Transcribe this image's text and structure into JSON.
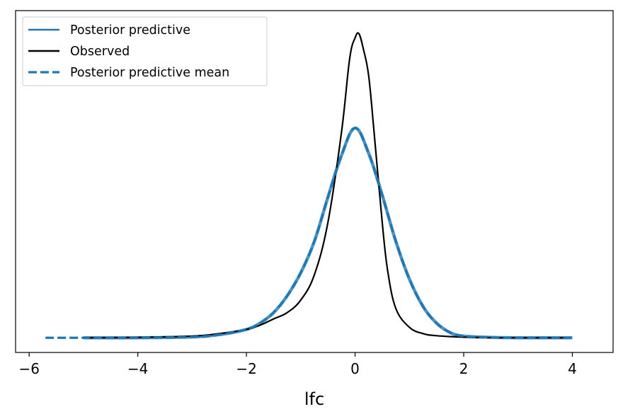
{
  "chart_data": {
    "type": "line",
    "title": "",
    "xlabel": "lfc",
    "ylabel": "",
    "xlim": [
      -6.25,
      4.75
    ],
    "ylim": [
      -0.07,
      1.56
    ],
    "xticks": [
      -6,
      -4,
      -2,
      0,
      2,
      4
    ],
    "xtick_labels": [
      "−6",
      "−4",
      "−2",
      "0",
      "2",
      "4"
    ],
    "yticks_shown": false,
    "grid": false,
    "legend": {
      "position": "top-left",
      "entries": [
        {
          "label": "Posterior predictive",
          "style": "solid",
          "color": "#1f77b4"
        },
        {
          "label": "Observed",
          "style": "solid",
          "color": "#000000"
        },
        {
          "label": "Posterior predictive mean",
          "style": "dashed",
          "color": "#1f77b4"
        }
      ]
    },
    "series": [
      {
        "name": "Posterior predictive",
        "color": "#1f77b4",
        "style": "solid",
        "x": [
          -5.0,
          -4.0,
          -3.0,
          -2.5,
          -2.0,
          -1.75,
          -1.5,
          -1.25,
          -1.0,
          -0.75,
          -0.5,
          -0.25,
          0.0,
          0.25,
          0.5,
          0.75,
          1.0,
          1.25,
          1.5,
          1.75,
          2.0,
          2.5,
          3.0,
          4.0
        ],
        "y": [
          0.0,
          0.0,
          0.004,
          0.015,
          0.04,
          0.07,
          0.12,
          0.2,
          0.31,
          0.46,
          0.67,
          0.87,
          1.0,
          0.88,
          0.68,
          0.46,
          0.28,
          0.15,
          0.07,
          0.025,
          0.008,
          0.002,
          0.0,
          0.0
        ]
      },
      {
        "name": "Observed",
        "color": "#000000",
        "style": "solid",
        "x": [
          -4.9,
          -4.0,
          -3.0,
          -2.5,
          -2.0,
          -1.75,
          -1.5,
          -1.25,
          -1.0,
          -0.75,
          -0.5,
          -0.25,
          -0.1,
          0.0,
          0.07,
          0.15,
          0.25,
          0.35,
          0.5,
          0.6,
          0.75,
          1.0,
          1.25,
          1.5,
          2.0,
          2.5,
          3.0,
          3.95
        ],
        "y": [
          0.0,
          0.002,
          0.008,
          0.02,
          0.04,
          0.06,
          0.09,
          0.12,
          0.18,
          0.3,
          0.55,
          0.98,
          1.33,
          1.43,
          1.45,
          1.38,
          1.25,
          0.98,
          0.55,
          0.32,
          0.14,
          0.05,
          0.02,
          0.01,
          0.003,
          0.001,
          0.0,
          0.0
        ]
      },
      {
        "name": "Posterior predictive mean",
        "color": "#1f77b4",
        "style": "dashed",
        "x": [
          -5.7,
          -5.0,
          -4.0,
          -3.0,
          -2.5,
          -2.0,
          -1.75,
          -1.5,
          -1.25,
          -1.0,
          -0.75,
          -0.5,
          -0.25,
          0.0,
          0.25,
          0.5,
          0.75,
          1.0,
          1.25,
          1.5,
          1.75,
          2.0,
          2.5,
          3.0,
          4.0
        ],
        "y": [
          0.0,
          0.0,
          0.0,
          0.004,
          0.015,
          0.04,
          0.07,
          0.12,
          0.2,
          0.31,
          0.46,
          0.67,
          0.87,
          1.0,
          0.88,
          0.68,
          0.46,
          0.28,
          0.15,
          0.07,
          0.025,
          0.008,
          0.002,
          0.0,
          0.0
        ]
      }
    ]
  }
}
